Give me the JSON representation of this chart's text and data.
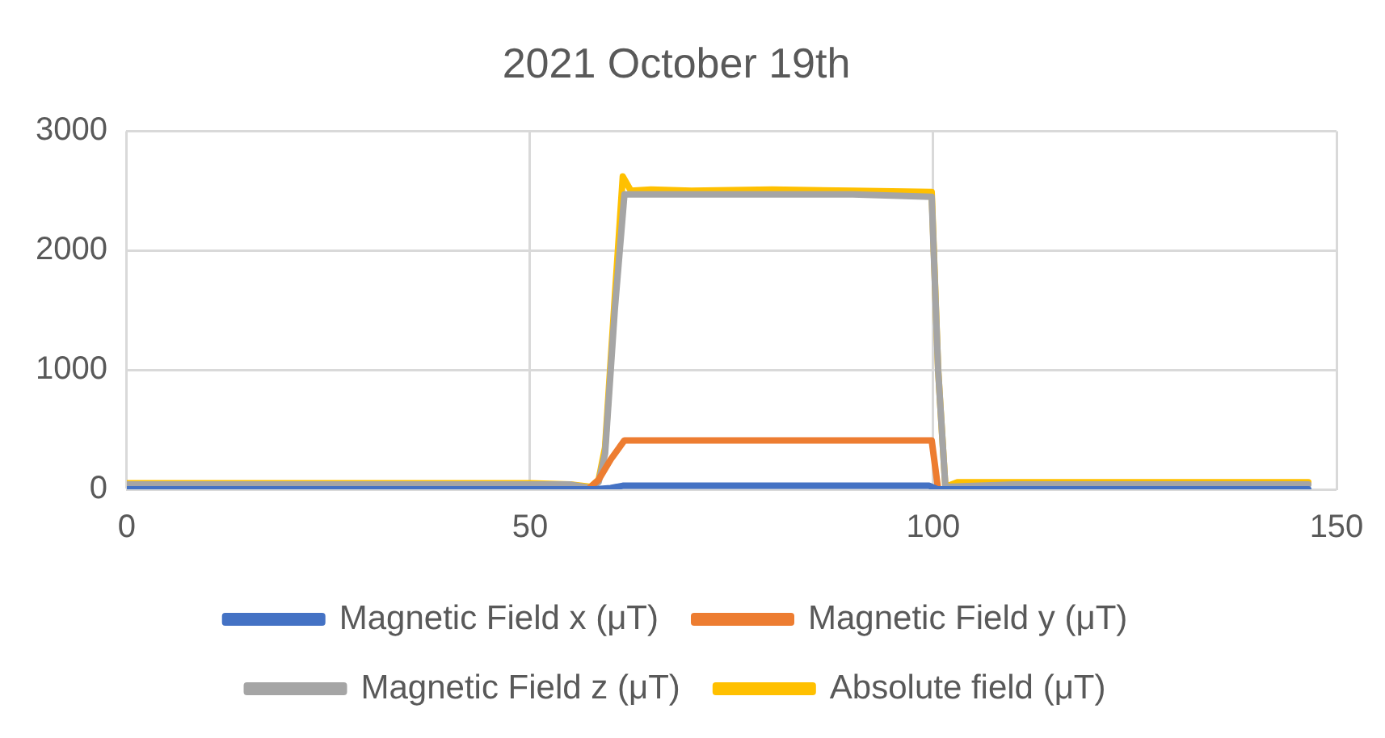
{
  "chart_data": {
    "type": "line",
    "title": "2021 October 19th",
    "xlim": [
      0,
      150
    ],
    "xticks": [
      0,
      50,
      100,
      150
    ],
    "ylim": [
      0,
      3000
    ],
    "yticks": [
      0,
      1000,
      2000,
      3000
    ],
    "grid": true,
    "legend": "bottom",
    "marker": "none",
    "line_style": "solid",
    "series": [
      {
        "name": "Magnetic Field x (μT)",
        "color": "#4472c4",
        "x": [
          0,
          20,
          40,
          55,
          58,
          60,
          61.5,
          70,
          80,
          90,
          99.5,
          100.5,
          110,
          130,
          146.5
        ],
        "values": [
          0,
          0,
          0,
          0,
          0,
          10,
          30,
          30,
          30,
          30,
          30,
          0,
          0,
          0,
          0
        ]
      },
      {
        "name": "Magnetic Field y (μT)",
        "color": "#ed7d31",
        "x": [
          57.2,
          58.5,
          60,
          61.7,
          70,
          80,
          90,
          99.8,
          100.6
        ],
        "values": [
          0,
          80,
          250,
          410,
          410,
          410,
          410,
          410,
          0
        ]
      },
      {
        "name": "Magnetic Field z (μT)",
        "color": "#a5a5a5",
        "x": [
          0,
          20,
          40,
          55,
          57.5,
          58.5,
          59.3,
          60.5,
          61.7,
          70,
          80,
          90,
          99.8,
          100.6,
          101.5,
          110,
          130,
          146.5
        ],
        "values": [
          40,
          40,
          40,
          40,
          10,
          60,
          300,
          1500,
          2470,
          2470,
          2470,
          2470,
          2450,
          1000,
          20,
          40,
          40,
          40
        ]
      },
      {
        "name": "Absolute field (μT)",
        "color": "#ffc000",
        "x": [
          0,
          20,
          40,
          50,
          55,
          57.5,
          58.5,
          59.3,
          60.5,
          61.5,
          62.5,
          65,
          70,
          80,
          90,
          99.8,
          100.6,
          101.5,
          103,
          110,
          130,
          146.5
        ],
        "values": [
          50,
          50,
          50,
          50,
          40,
          20,
          80,
          350,
          1600,
          2620,
          2500,
          2510,
          2500,
          2510,
          2500,
          2490,
          1000,
          20,
          60,
          60,
          60,
          60
        ]
      }
    ]
  }
}
